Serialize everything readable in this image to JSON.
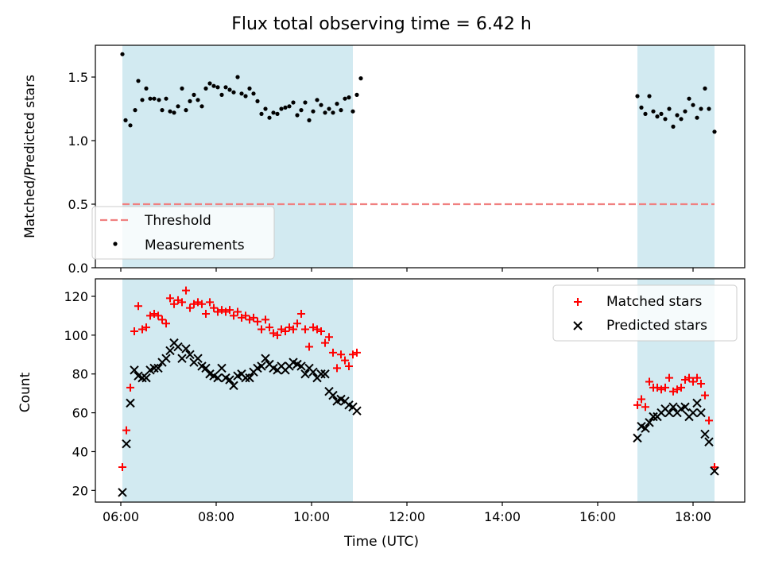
{
  "title": "Flux total observing time = 6.42 h",
  "xlabel": "Time (UTC)",
  "chart_data": [
    {
      "type": "scatter",
      "panel": "top",
      "ylabel": "Matched/Predicted stars",
      "xlim": [
        "05:28",
        "19:05"
      ],
      "ylim": [
        0,
        1.75
      ],
      "x_ticks": [
        "06:00",
        "08:00",
        "10:00",
        "12:00",
        "14:00",
        "16:00",
        "18:00"
      ],
      "y_ticks": [
        "0.0",
        "0.5",
        "1.0",
        "1.5"
      ],
      "shaded_intervals": [
        [
          "06:02",
          "10:52"
        ],
        [
          "16:50",
          "18:27"
        ]
      ],
      "threshold": {
        "name": "Threshold",
        "value": 0.5,
        "x_range": [
          "06:02",
          "18:27"
        ],
        "color": "#f08080",
        "style": "dashed"
      },
      "legend": {
        "placement": "lower-left",
        "entries": [
          "Threshold",
          "Measurements"
        ]
      },
      "series": [
        {
          "name": "Measurements",
          "color": "#000000",
          "points": [
            [
              "06:02",
              1.68
            ],
            [
              "06:06",
              1.16
            ],
            [
              "06:12",
              1.12
            ],
            [
              "06:18",
              1.24
            ],
            [
              "06:22",
              1.47
            ],
            [
              "06:27",
              1.32
            ],
            [
              "06:32",
              1.41
            ],
            [
              "06:37",
              1.33
            ],
            [
              "06:42",
              1.33
            ],
            [
              "06:48",
              1.32
            ],
            [
              "06:52",
              1.24
            ],
            [
              "06:57",
              1.33
            ],
            [
              "07:02",
              1.23
            ],
            [
              "07:07",
              1.22
            ],
            [
              "07:12",
              1.27
            ],
            [
              "07:17",
              1.41
            ],
            [
              "07:22",
              1.24
            ],
            [
              "07:27",
              1.31
            ],
            [
              "07:32",
              1.36
            ],
            [
              "07:37",
              1.32
            ],
            [
              "07:42",
              1.27
            ],
            [
              "07:47",
              1.41
            ],
            [
              "07:52",
              1.45
            ],
            [
              "07:57",
              1.43
            ],
            [
              "08:02",
              1.42
            ],
            [
              "08:07",
              1.36
            ],
            [
              "08:12",
              1.42
            ],
            [
              "08:17",
              1.4
            ],
            [
              "08:22",
              1.38
            ],
            [
              "08:27",
              1.5
            ],
            [
              "08:32",
              1.37
            ],
            [
              "08:37",
              1.35
            ],
            [
              "08:42",
              1.41
            ],
            [
              "08:47",
              1.37
            ],
            [
              "08:52",
              1.31
            ],
            [
              "08:57",
              1.21
            ],
            [
              "09:02",
              1.25
            ],
            [
              "09:07",
              1.18
            ],
            [
              "09:12",
              1.22
            ],
            [
              "09:17",
              1.21
            ],
            [
              "09:22",
              1.25
            ],
            [
              "09:27",
              1.26
            ],
            [
              "09:32",
              1.27
            ],
            [
              "09:37",
              1.3
            ],
            [
              "09:42",
              1.2
            ],
            [
              "09:47",
              1.24
            ],
            [
              "09:52",
              1.3
            ],
            [
              "09:57",
              1.16
            ],
            [
              "10:02",
              1.23
            ],
            [
              "10:07",
              1.32
            ],
            [
              "10:12",
              1.28
            ],
            [
              "10:17",
              1.22
            ],
            [
              "10:22",
              1.25
            ],
            [
              "10:27",
              1.22
            ],
            [
              "10:32",
              1.29
            ],
            [
              "10:37",
              1.24
            ],
            [
              "10:42",
              1.33
            ],
            [
              "10:47",
              1.34
            ],
            [
              "10:52",
              1.23
            ],
            [
              "10:57",
              1.36
            ],
            [
              "11:02",
              1.49
            ],
            [
              "16:50",
              1.35
            ],
            [
              "16:55",
              1.26
            ],
            [
              "17:00",
              1.21
            ],
            [
              "17:05",
              1.35
            ],
            [
              "17:10",
              1.23
            ],
            [
              "17:15",
              1.19
            ],
            [
              "17:20",
              1.21
            ],
            [
              "17:25",
              1.17
            ],
            [
              "17:30",
              1.25
            ],
            [
              "17:35",
              1.11
            ],
            [
              "17:40",
              1.2
            ],
            [
              "17:45",
              1.17
            ],
            [
              "17:50",
              1.23
            ],
            [
              "17:55",
              1.33
            ],
            [
              "18:00",
              1.28
            ],
            [
              "18:05",
              1.18
            ],
            [
              "18:10",
              1.25
            ],
            [
              "18:15",
              1.41
            ],
            [
              "18:20",
              1.25
            ],
            [
              "18:27",
              1.07
            ]
          ]
        }
      ]
    },
    {
      "type": "scatter",
      "panel": "bottom",
      "ylabel": "Count",
      "xlim": [
        "05:28",
        "19:05"
      ],
      "ylim": [
        14,
        129
      ],
      "x_ticks": [
        "06:00",
        "08:00",
        "10:00",
        "12:00",
        "14:00",
        "16:00",
        "18:00"
      ],
      "y_ticks": [
        "20",
        "40",
        "60",
        "80",
        "100",
        "120"
      ],
      "shaded_intervals": [
        [
          "06:02",
          "10:52"
        ],
        [
          "16:50",
          "18:27"
        ]
      ],
      "legend": {
        "placement": "upper-right",
        "entries": [
          "Matched stars",
          "Predicted stars"
        ]
      },
      "series": [
        {
          "name": "Matched stars",
          "marker": "+",
          "color": "#ff0000",
          "points": [
            [
              "06:02",
              32
            ],
            [
              "06:07",
              51
            ],
            [
              "06:12",
              73
            ],
            [
              "06:17",
              102
            ],
            [
              "06:22",
              115
            ],
            [
              "06:27",
              103
            ],
            [
              "06:32",
              104
            ],
            [
              "06:37",
              110
            ],
            [
              "06:42",
              111
            ],
            [
              "06:47",
              110
            ],
            [
              "06:52",
              108
            ],
            [
              "06:57",
              106
            ],
            [
              "07:02",
              119
            ],
            [
              "07:07",
              116
            ],
            [
              "07:12",
              118
            ],
            [
              "07:17",
              117
            ],
            [
              "07:22",
              123
            ],
            [
              "07:27",
              114
            ],
            [
              "07:32",
              116
            ],
            [
              "07:37",
              117
            ],
            [
              "07:42",
              116
            ],
            [
              "07:47",
              111
            ],
            [
              "07:52",
              117
            ],
            [
              "07:57",
              114
            ],
            [
              "08:02",
              112
            ],
            [
              "08:07",
              113
            ],
            [
              "08:12",
              112
            ],
            [
              "08:17",
              113
            ],
            [
              "08:22",
              110
            ],
            [
              "08:27",
              112
            ],
            [
              "08:32",
              109
            ],
            [
              "08:37",
              110
            ],
            [
              "08:42",
              108
            ],
            [
              "08:47",
              109
            ],
            [
              "08:52",
              107
            ],
            [
              "08:57",
              103
            ],
            [
              "09:02",
              108
            ],
            [
              "09:07",
              104
            ],
            [
              "09:12",
              101
            ],
            [
              "09:17",
              100
            ],
            [
              "09:22",
              103
            ],
            [
              "09:27",
              102
            ],
            [
              "09:32",
              104
            ],
            [
              "09:37",
              103
            ],
            [
              "09:42",
              106
            ],
            [
              "09:47",
              111
            ],
            [
              "09:52",
              103
            ],
            [
              "09:57",
              94
            ],
            [
              "10:02",
              104
            ],
            [
              "10:07",
              103
            ],
            [
              "10:12",
              102
            ],
            [
              "10:17",
              96
            ],
            [
              "10:22",
              99
            ],
            [
              "10:27",
              91
            ],
            [
              "10:32",
              83
            ],
            [
              "10:37",
              90
            ],
            [
              "10:42",
              87
            ],
            [
              "10:47",
              84
            ],
            [
              "10:52",
              90
            ],
            [
              "10:57",
              91
            ],
            [
              "16:50",
              64
            ],
            [
              "16:55",
              67
            ],
            [
              "17:00",
              63
            ],
            [
              "17:05",
              76
            ],
            [
              "17:10",
              73
            ],
            [
              "17:15",
              73
            ],
            [
              "17:20",
              72
            ],
            [
              "17:25",
              73
            ],
            [
              "17:30",
              78
            ],
            [
              "17:35",
              71
            ],
            [
              "17:40",
              72
            ],
            [
              "17:45",
              73
            ],
            [
              "17:50",
              77
            ],
            [
              "17:55",
              78
            ],
            [
              "18:00",
              76
            ],
            [
              "18:05",
              78
            ],
            [
              "18:10",
              75
            ],
            [
              "18:15",
              69
            ],
            [
              "18:20",
              56
            ],
            [
              "18:27",
              32
            ]
          ]
        },
        {
          "name": "Predicted stars",
          "marker": "x",
          "color": "#000000",
          "points": [
            [
              "06:02",
              19
            ],
            [
              "06:07",
              44
            ],
            [
              "06:12",
              65
            ],
            [
              "06:17",
              82
            ],
            [
              "06:22",
              79
            ],
            [
              "06:27",
              78
            ],
            [
              "06:32",
              78
            ],
            [
              "06:37",
              82
            ],
            [
              "06:42",
              83
            ],
            [
              "06:47",
              83
            ],
            [
              "06:52",
              86
            ],
            [
              "06:57",
              88
            ],
            [
              "07:02",
              92
            ],
            [
              "07:07",
              96
            ],
            [
              "07:12",
              94
            ],
            [
              "07:17",
              88
            ],
            [
              "07:22",
              93
            ],
            [
              "07:27",
              90
            ],
            [
              "07:32",
              86
            ],
            [
              "07:37",
              88
            ],
            [
              "07:42",
              84
            ],
            [
              "07:47",
              83
            ],
            [
              "07:52",
              80
            ],
            [
              "07:57",
              79
            ],
            [
              "08:02",
              78
            ],
            [
              "08:07",
              83
            ],
            [
              "08:12",
              78
            ],
            [
              "08:17",
              77
            ],
            [
              "08:22",
              74
            ],
            [
              "08:27",
              79
            ],
            [
              "08:32",
              80
            ],
            [
              "08:37",
              78
            ],
            [
              "08:42",
              78
            ],
            [
              "08:47",
              81
            ],
            [
              "08:52",
              83
            ],
            [
              "08:57",
              84
            ],
            [
              "09:02",
              88
            ],
            [
              "09:07",
              85
            ],
            [
              "09:12",
              83
            ],
            [
              "09:17",
              82
            ],
            [
              "09:22",
              84
            ],
            [
              "09:27",
              82
            ],
            [
              "09:32",
              84
            ],
            [
              "09:37",
              86
            ],
            [
              "09:42",
              85
            ],
            [
              "09:47",
              84
            ],
            [
              "09:52",
              80
            ],
            [
              "09:57",
              83
            ],
            [
              "10:02",
              81
            ],
            [
              "10:07",
              78
            ],
            [
              "10:12",
              80
            ],
            [
              "10:17",
              80
            ],
            [
              "10:22",
              71
            ],
            [
              "10:27",
              69
            ],
            [
              "10:32",
              66
            ],
            [
              "10:37",
              67
            ],
            [
              "10:42",
              66
            ],
            [
              "10:47",
              64
            ],
            [
              "10:52",
              63
            ],
            [
              "10:57",
              61
            ],
            [
              "16:50",
              47
            ],
            [
              "16:55",
              53
            ],
            [
              "17:00",
              52
            ],
            [
              "17:05",
              55
            ],
            [
              "17:10",
              58
            ],
            [
              "17:15",
              58
            ],
            [
              "17:20",
              60
            ],
            [
              "17:25",
              62
            ],
            [
              "17:30",
              60
            ],
            [
              "17:35",
              63
            ],
            [
              "17:40",
              60
            ],
            [
              "17:45",
              62
            ],
            [
              "17:50",
              63
            ],
            [
              "17:55",
              58
            ],
            [
              "18:00",
              60
            ],
            [
              "18:05",
              65
            ],
            [
              "18:10",
              60
            ],
            [
              "18:15",
              49
            ],
            [
              "18:20",
              45
            ],
            [
              "18:27",
              30
            ]
          ]
        }
      ]
    }
  ]
}
